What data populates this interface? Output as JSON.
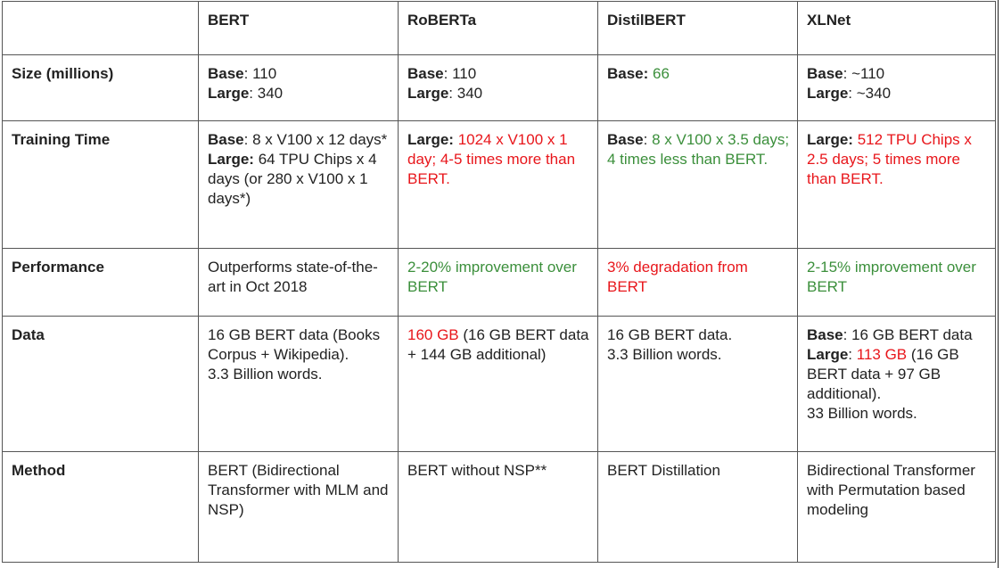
{
  "headers": [
    "",
    "BERT",
    "RoBERTa",
    "DistilBERT",
    "XLNet"
  ],
  "rows": {
    "size": {
      "label": "Size (millions)",
      "bert": {
        "base_label": "Base",
        "base_sep": ": 110",
        "large_label": "Large",
        "large_sep": ": 340"
      },
      "roberta": {
        "base_label": "Base",
        "base_sep": ": 110",
        "large_label": "Large",
        "large_sep": ": 340"
      },
      "distil": {
        "base_label": "Base:",
        "base_value": " 66"
      },
      "xlnet": {
        "base_label": "Base",
        "base_sep": ": ~110",
        "large_label": "Large",
        "large_sep": ": ~340"
      }
    },
    "training": {
      "label": "Training Time",
      "bert": {
        "base_label": "Base",
        "base_text": ": 8 x V100 x 12 days*",
        "large_label": "Large:",
        "large_text": " 64 TPU Chips x 4 days (or 280 x V100 x 1 days*)"
      },
      "roberta": {
        "large_label": "Large:",
        "text": " 1024 x V100 x 1 day; 4-5 times more than BERT."
      },
      "distil": {
        "base_label": "Base",
        "colon": ":",
        "text": " 8 x V100 x 3.5 days; 4 times less than BERT."
      },
      "xlnet": {
        "large_label": "Large:",
        "text": " 512 TPU Chips x 2.5 days; 5 times more than BERT."
      }
    },
    "performance": {
      "label": "Performance",
      "bert": "Outperforms state-of-the-art in Oct 2018",
      "roberta": "2-20% improvement over BERT",
      "distil": "3% degradation from BERT",
      "xlnet": "2-15% improvement over BERT"
    },
    "data": {
      "label": "Data",
      "bert_lines": [
        "16 GB BERT data (Books Corpus + Wikipedia).",
        "3.3 Billion words."
      ],
      "roberta": {
        "highlight": "160 GB",
        "rest": " (16 GB BERT data + 144 GB additional)"
      },
      "distil_lines": [
        "16 GB BERT data.",
        "3.3 Billion words."
      ],
      "xlnet": {
        "base_label": "Base",
        "base_text": ": 16 GB BERT data",
        "large_label": "Large",
        "large_colon": ": ",
        "large_highlight": "113 GB",
        "large_rest": " (16 GB BERT data + 97 GB additional).",
        "words": "33 Billion words."
      }
    },
    "method": {
      "label": "Method",
      "bert": "BERT (Bidirectional Transformer with MLM and NSP)",
      "roberta": "BERT without NSP**",
      "distil": "BERT Distillation",
      "xlnet": "Bidirectional Transformer with Permutation based modeling"
    }
  },
  "colors": {
    "positive": "#3b8f3b",
    "negative": "#e8161b",
    "border": "#555555"
  }
}
